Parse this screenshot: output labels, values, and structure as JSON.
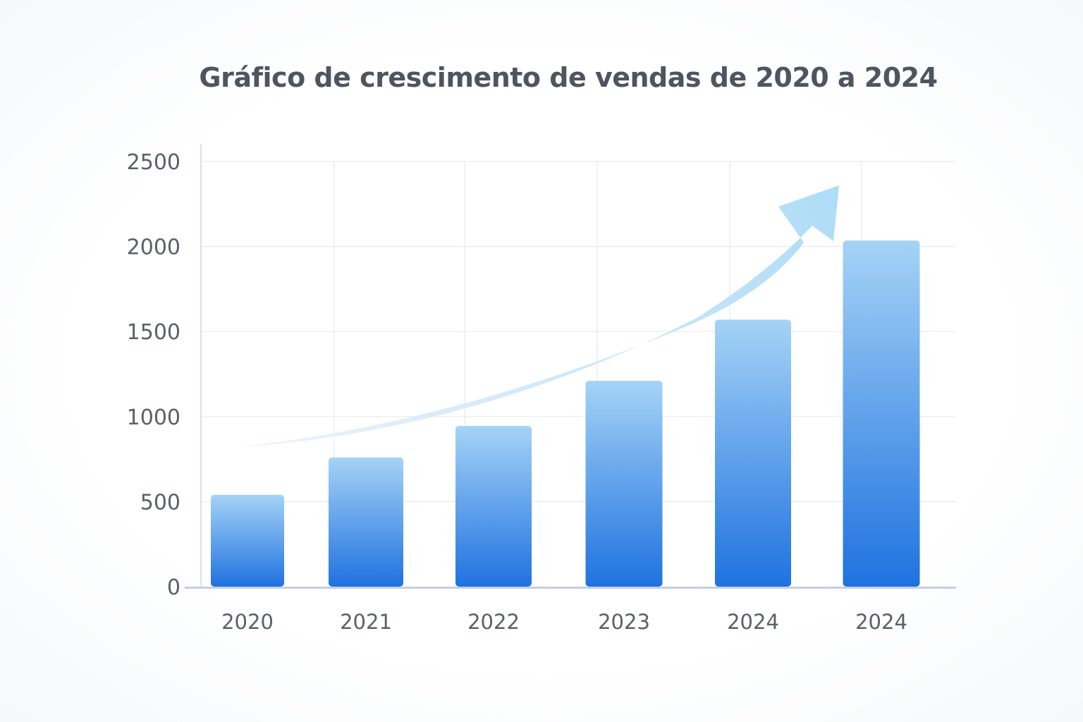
{
  "chart_data": {
    "type": "bar",
    "title": "Gráfico de crescimento de vendas de 2020 a 2024",
    "xlabel": "",
    "ylabel": "",
    "categories": [
      "2020",
      "2021",
      "2022",
      "2023",
      "2024",
      "2024"
    ],
    "values": [
      540,
      760,
      945,
      1210,
      1570,
      2035
    ],
    "ylim": [
      0,
      2500
    ],
    "yticks": [
      0,
      500,
      1000,
      1500,
      2000,
      2500
    ],
    "grid": true,
    "legend": "none",
    "annotations": [
      {
        "type": "trend-arrow",
        "direction": "upward",
        "color": "#aedcf7"
      }
    ],
    "colors": {
      "bar_top": "#a5d3f6",
      "bar_bottom": "#1f72e0",
      "axis": "#c5cfe0",
      "grid": "#e7eaee",
      "text": "#59606a",
      "title": "#4d5560"
    }
  }
}
